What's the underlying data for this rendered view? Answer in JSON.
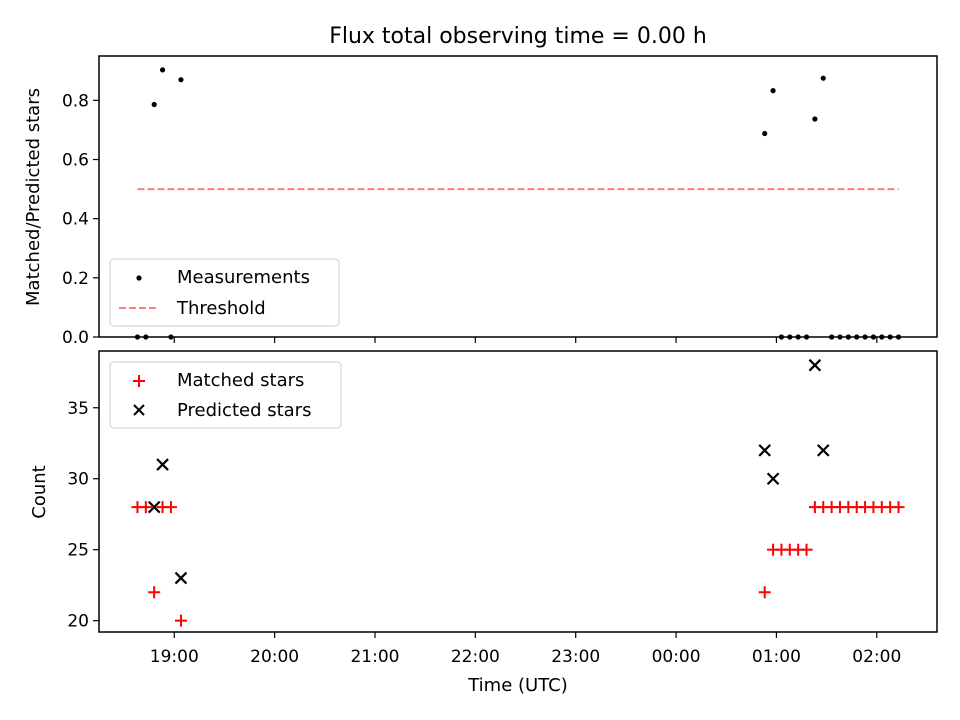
{
  "chart_data": [
    {
      "type": "scatter",
      "title": "Flux total observing time = 0.00 h",
      "ylabel": "Matched/Predicted stars",
      "xlabel": "",
      "xlim": [
        "18:15",
        "02:36"
      ],
      "ylim": [
        0,
        0.95
      ],
      "yticks": [
        "0.0",
        "0.2",
        "0.4",
        "0.6",
        "0.8"
      ],
      "ytick_values": [
        0,
        0.2,
        0.4,
        0.6,
        0.8
      ],
      "legend": {
        "placement": "lower-left",
        "entries": [
          "Measurements",
          "Threshold"
        ]
      },
      "series": [
        {
          "name": "Measurements",
          "marker": "dot",
          "color": "#000000",
          "points": [
            [
              "18:38",
              0.0
            ],
            [
              "18:43",
              0.0
            ],
            [
              "18:48",
              0.786
            ],
            [
              "18:53",
              0.903
            ],
            [
              "18:58",
              0.0
            ],
            [
              "19:04",
              0.87
            ],
            [
              "00:53",
              0.688
            ],
            [
              "00:58",
              0.833
            ],
            [
              "01:03",
              0.0
            ],
            [
              "01:08",
              0.0
            ],
            [
              "01:13",
              0.0
            ],
            [
              "01:18",
              0.0
            ],
            [
              "01:23",
              0.737
            ],
            [
              "01:28",
              0.875
            ],
            [
              "01:33",
              0.0
            ],
            [
              "01:38",
              0.0
            ],
            [
              "01:43",
              0.0
            ],
            [
              "01:48",
              0.0
            ],
            [
              "01:53",
              0.0
            ],
            [
              "01:58",
              0.0
            ],
            [
              "02:03",
              0.0
            ],
            [
              "02:08",
              0.0
            ],
            [
              "02:13",
              0.0
            ]
          ]
        },
        {
          "name": "Threshold",
          "marker": "dashed-line",
          "color": "#ff7f7f",
          "points": [
            [
              "18:38",
              0.5
            ],
            [
              "02:13",
              0.5
            ]
          ]
        }
      ]
    },
    {
      "type": "scatter",
      "title": "",
      "xlabel": "Time (UTC)",
      "ylabel": "Count",
      "xlim": [
        "18:15",
        "02:36"
      ],
      "ylim": [
        19.2,
        39.0
      ],
      "xticks": [
        "19:00",
        "20:00",
        "21:00",
        "22:00",
        "23:00",
        "00:00",
        "01:00",
        "02:00"
      ],
      "yticks": [
        "20",
        "25",
        "30",
        "35"
      ],
      "ytick_values": [
        20,
        25,
        30,
        35
      ],
      "legend": {
        "placement": "upper-left",
        "entries": [
          "Matched stars",
          "Predicted stars"
        ]
      },
      "series": [
        {
          "name": "Matched stars",
          "marker": "plus",
          "color": "#ff0000",
          "points": [
            [
              "18:38",
              28
            ],
            [
              "18:43",
              28
            ],
            [
              "18:48",
              22
            ],
            [
              "18:53",
              28
            ],
            [
              "18:58",
              28
            ],
            [
              "19:04",
              20
            ],
            [
              "00:53",
              22
            ],
            [
              "00:58",
              25
            ],
            [
              "01:03",
              25
            ],
            [
              "01:08",
              25
            ],
            [
              "01:13",
              25
            ],
            [
              "01:18",
              25
            ],
            [
              "01:23",
              28
            ],
            [
              "01:28",
              28
            ],
            [
              "01:33",
              28
            ],
            [
              "01:38",
              28
            ],
            [
              "01:43",
              28
            ],
            [
              "01:48",
              28
            ],
            [
              "01:53",
              28
            ],
            [
              "01:58",
              28
            ],
            [
              "02:03",
              28
            ],
            [
              "02:08",
              28
            ],
            [
              "02:13",
              28
            ]
          ]
        },
        {
          "name": "Predicted stars",
          "marker": "x",
          "color": "#000000",
          "points": [
            [
              "18:48",
              28
            ],
            [
              "18:53",
              31
            ],
            [
              "19:04",
              23
            ],
            [
              "00:53",
              32
            ],
            [
              "00:58",
              30
            ],
            [
              "01:23",
              38
            ],
            [
              "01:28",
              32
            ]
          ]
        }
      ]
    }
  ]
}
